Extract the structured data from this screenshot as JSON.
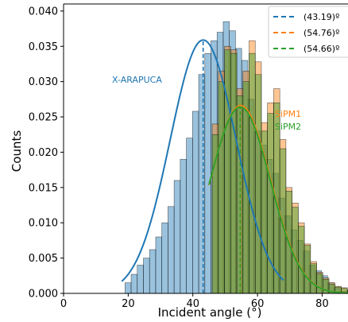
{
  "chart_data": {
    "type": "bar",
    "xlabel": "Incident angle (°)",
    "ylabel": "Counts",
    "xlim": [
      0,
      88
    ],
    "ylim": [
      0,
      0.041
    ],
    "xticks": [
      "0",
      "20",
      "40",
      "60",
      "80"
    ],
    "yticks": [
      "0.000",
      "0.005",
      "0.010",
      "0.015",
      "0.020",
      "0.025",
      "0.030",
      "0.035",
      "0.040"
    ],
    "bin_width": 1.9,
    "series": [
      {
        "name": "X-ARAPUCA",
        "color": "#1f77b4",
        "bin_start": 19.0,
        "values": [
          0.0015,
          0.0027,
          0.004,
          0.005,
          0.0062,
          0.008,
          0.01,
          0.0123,
          0.016,
          0.019,
          0.022,
          0.0258,
          0.031,
          0.034,
          0.0358,
          0.037,
          0.0385,
          0.0372,
          0.0347,
          0.033,
          0.0275,
          0.023,
          0.021,
          0.019,
          0.017,
          0.0135,
          0.011,
          0.009,
          0.0075,
          0.006,
          0.004,
          0.0032,
          0.0025,
          0.0015,
          0.0008,
          0.0003
        ],
        "fit_mean": 43.19,
        "fit_sigma": 10.2,
        "fit_amp": 0.0359,
        "fit_range": [
          18,
          68
        ]
      },
      {
        "name": "SiPM1",
        "color": "#ff7f0e",
        "bin_start": 46.0,
        "values": [
          0.024,
          0.0315,
          0.035,
          0.0345,
          0.029,
          0.0315,
          0.0358,
          0.0328,
          0.0242,
          0.027,
          0.029,
          0.0218,
          0.015,
          0.0128,
          0.01,
          0.007,
          0.0045,
          0.003,
          0.0022,
          0.0015,
          0.001,
          0.0008,
          0.0005
        ],
        "fit_mean": 54.76,
        "fit_sigma": 9.3,
        "fit_amp": 0.0266,
        "fit_range": [
          45,
          88
        ]
      },
      {
        "name": "SiPM2",
        "color": "#2ca02c",
        "bin_start": 46.0,
        "values": [
          0.0225,
          0.03,
          0.0345,
          0.034,
          0.028,
          0.03,
          0.034,
          0.031,
          0.023,
          0.0255,
          0.027,
          0.0205,
          0.0145,
          0.0122,
          0.0095,
          0.0068,
          0.0042,
          0.0028,
          0.002,
          0.0013,
          0.0009,
          0.0007,
          0.0004
        ],
        "fit_mean": 54.66,
        "fit_sigma": 9.3,
        "fit_amp": 0.0264,
        "fit_range": [
          45,
          88
        ]
      }
    ],
    "legend": {
      "placement": "top-right",
      "entries": [
        {
          "label": "(43.19)º",
          "color": "#1f77b4"
        },
        {
          "label": "(54.76)º",
          "color": "#ff7f0e"
        },
        {
          "label": "(54.66)º",
          "color": "#2ca02c"
        }
      ]
    },
    "annotations": {
      "xarapuca": {
        "text": "X-ARAPUCA",
        "color": "#1f77b4"
      },
      "sipm1": {
        "text": "SiPM1",
        "color": "#ff7f0e"
      },
      "sipm2": {
        "text": "SiPM2",
        "color": "#2ca02c"
      }
    }
  }
}
